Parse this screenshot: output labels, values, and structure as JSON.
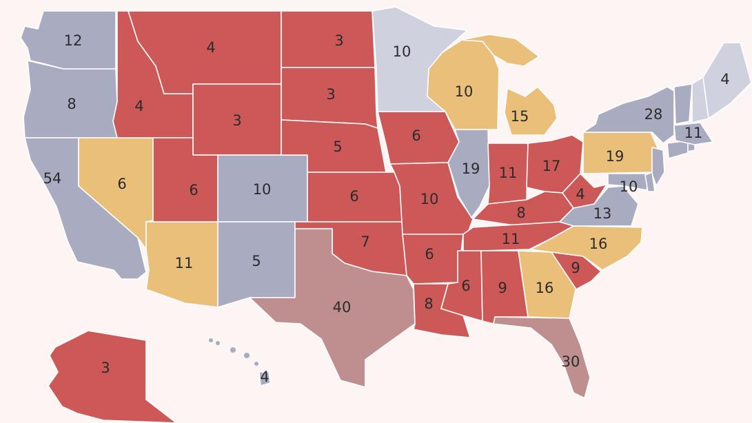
{
  "colors": {
    "background": "#fdf4f4",
    "solid_red": "#cd5858",
    "lean_red": "#bf8f8f",
    "tossup": "#e9bf7a",
    "solid_blue": "#a9abc0",
    "lean_blue": "#d0d1de"
  },
  "states": [
    {
      "id": "WA",
      "ev": "12",
      "rating": "solid_blue"
    },
    {
      "id": "OR",
      "ev": "8",
      "rating": "solid_blue"
    },
    {
      "id": "CA",
      "ev": "54",
      "rating": "solid_blue"
    },
    {
      "id": "NV",
      "ev": "6",
      "rating": "tossup"
    },
    {
      "id": "ID",
      "ev": "4",
      "rating": "solid_red"
    },
    {
      "id": "MT",
      "ev": "4",
      "rating": "solid_red"
    },
    {
      "id": "WY",
      "ev": "3",
      "rating": "solid_red"
    },
    {
      "id": "UT",
      "ev": "6",
      "rating": "solid_red"
    },
    {
      "id": "AZ",
      "ev": "11",
      "rating": "tossup"
    },
    {
      "id": "CO",
      "ev": "10",
      "rating": "solid_blue"
    },
    {
      "id": "NM",
      "ev": "5",
      "rating": "solid_blue"
    },
    {
      "id": "ND",
      "ev": "3",
      "rating": "solid_red"
    },
    {
      "id": "SD",
      "ev": "3",
      "rating": "solid_red"
    },
    {
      "id": "NE",
      "ev": "5",
      "rating": "solid_red"
    },
    {
      "id": "KS",
      "ev": "6",
      "rating": "solid_red"
    },
    {
      "id": "OK",
      "ev": "7",
      "rating": "solid_red"
    },
    {
      "id": "TX",
      "ev": "40",
      "rating": "lean_red"
    },
    {
      "id": "MN",
      "ev": "10",
      "rating": "lean_blue"
    },
    {
      "id": "IA",
      "ev": "6",
      "rating": "solid_red"
    },
    {
      "id": "MO",
      "ev": "10",
      "rating": "solid_red"
    },
    {
      "id": "AR",
      "ev": "6",
      "rating": "solid_red"
    },
    {
      "id": "LA",
      "ev": "8",
      "rating": "solid_red"
    },
    {
      "id": "WI",
      "ev": "10",
      "rating": "tossup"
    },
    {
      "id": "MI",
      "ev": "15",
      "rating": "tossup"
    },
    {
      "id": "IL",
      "ev": "19",
      "rating": "solid_blue"
    },
    {
      "id": "IN",
      "ev": "11",
      "rating": "solid_red"
    },
    {
      "id": "OH",
      "ev": "17",
      "rating": "solid_red"
    },
    {
      "id": "KY",
      "ev": "8",
      "rating": "solid_red"
    },
    {
      "id": "TN",
      "ev": "11",
      "rating": "solid_red"
    },
    {
      "id": "MS",
      "ev": "6",
      "rating": "solid_red"
    },
    {
      "id": "AL",
      "ev": "9",
      "rating": "solid_red"
    },
    {
      "id": "GA",
      "ev": "16",
      "rating": "tossup"
    },
    {
      "id": "FL",
      "ev": "30",
      "rating": "lean_red"
    },
    {
      "id": "SC",
      "ev": "9",
      "rating": "solid_red"
    },
    {
      "id": "NC",
      "ev": "16",
      "rating": "tossup"
    },
    {
      "id": "VA",
      "ev": "13",
      "rating": "solid_blue"
    },
    {
      "id": "WV",
      "ev": "4",
      "rating": "solid_red"
    },
    {
      "id": "PA",
      "ev": "19",
      "rating": "tossup"
    },
    {
      "id": "MD",
      "ev": "10",
      "rating": "solid_blue"
    },
    {
      "id": "DE",
      "ev": "",
      "rating": "solid_blue"
    },
    {
      "id": "NJ",
      "ev": "",
      "rating": "solid_blue"
    },
    {
      "id": "NY",
      "ev": "28",
      "rating": "solid_blue"
    },
    {
      "id": "CT",
      "ev": "",
      "rating": "solid_blue"
    },
    {
      "id": "RI",
      "ev": "",
      "rating": "solid_blue"
    },
    {
      "id": "MA",
      "ev": "11",
      "rating": "solid_blue"
    },
    {
      "id": "VT",
      "ev": "",
      "rating": "solid_blue"
    },
    {
      "id": "NH",
      "ev": "",
      "rating": "lean_blue"
    },
    {
      "id": "ME",
      "ev": "4",
      "rating": "lean_blue"
    },
    {
      "id": "AK",
      "ev": "3",
      "rating": "solid_red"
    },
    {
      "id": "HI",
      "ev": "4",
      "rating": "solid_blue"
    }
  ]
}
